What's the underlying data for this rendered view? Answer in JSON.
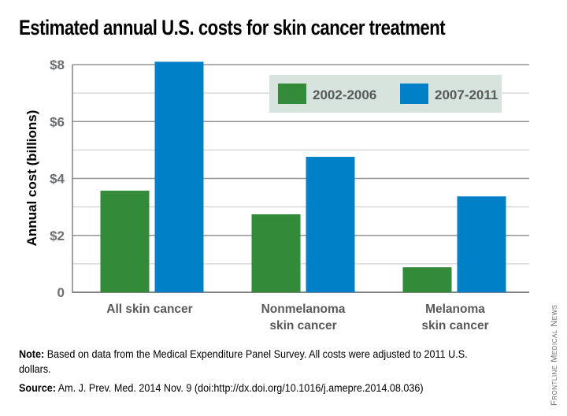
{
  "chart_data": {
    "type": "bar",
    "title": "Estimated annual U.S. costs for skin cancer treatment",
    "xlabel": "",
    "ylabel": "Annual cost (billions)",
    "ylim": [
      0,
      8
    ],
    "yticks": [
      0,
      2,
      4,
      6,
      8
    ],
    "ytick_labels": [
      "0",
      "$2",
      "$4",
      "$6",
      "$8"
    ],
    "grid": true,
    "categories": [
      [
        "All skin cancer"
      ],
      [
        "Nonmelanoma",
        "skin cancer"
      ],
      [
        "Melanoma",
        "skin cancer"
      ]
    ],
    "series": [
      {
        "name": "2002-2006",
        "color": "#338a39",
        "values": [
          3.57,
          2.74,
          0.88
        ]
      },
      {
        "name": "2007-2011",
        "color": "#0080c7",
        "values": [
          8.1,
          4.76,
          3.37
        ]
      }
    ],
    "legend_position": "top-right",
    "legend_background": "#d7e4dd"
  },
  "note": {
    "label": "Note:",
    "text": " Based on data from the Medical Expenditure Panel Survey. All costs were adjusted to 2011 U.S. dollars."
  },
  "source": {
    "label": "Source:",
    "text": " Am. J. Prev. Med. 2014 Nov. 9 (doi:http://dx.doi.org/10.1016/j.amepre.2014.08.036)"
  },
  "credit": "Frontline Medical News"
}
